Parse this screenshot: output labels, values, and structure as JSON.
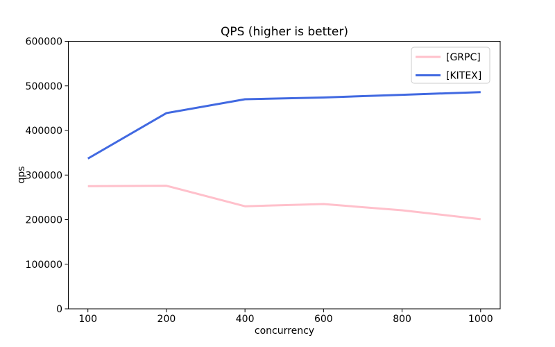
{
  "figure": {
    "background": "#ffffff",
    "axis_color": "#000000",
    "text_color": "#000000",
    "legend_border_color": "#cccccc",
    "legend_background": "#ffffff"
  },
  "chart_data": {
    "type": "line",
    "title": "QPS (higher is better)",
    "xlabel": "concurrency",
    "ylabel": "qps",
    "categories": [
      "100",
      "200",
      "400",
      "600",
      "800",
      "1000"
    ],
    "series": [
      {
        "name": "[GRPC]",
        "color": "#ffc0cb",
        "values": [
          275000,
          276000,
          230000,
          235000,
          221000,
          201000
        ]
      },
      {
        "name": "[KITEX]",
        "color": "#4169e1",
        "values": [
          337000,
          439000,
          470000,
          474000,
          480000,
          486000
        ]
      }
    ],
    "ylim": [
      0,
      600000
    ],
    "yticks": [
      0,
      100000,
      200000,
      300000,
      400000,
      500000,
      600000
    ],
    "grid": false,
    "legend_position": "upper right"
  }
}
